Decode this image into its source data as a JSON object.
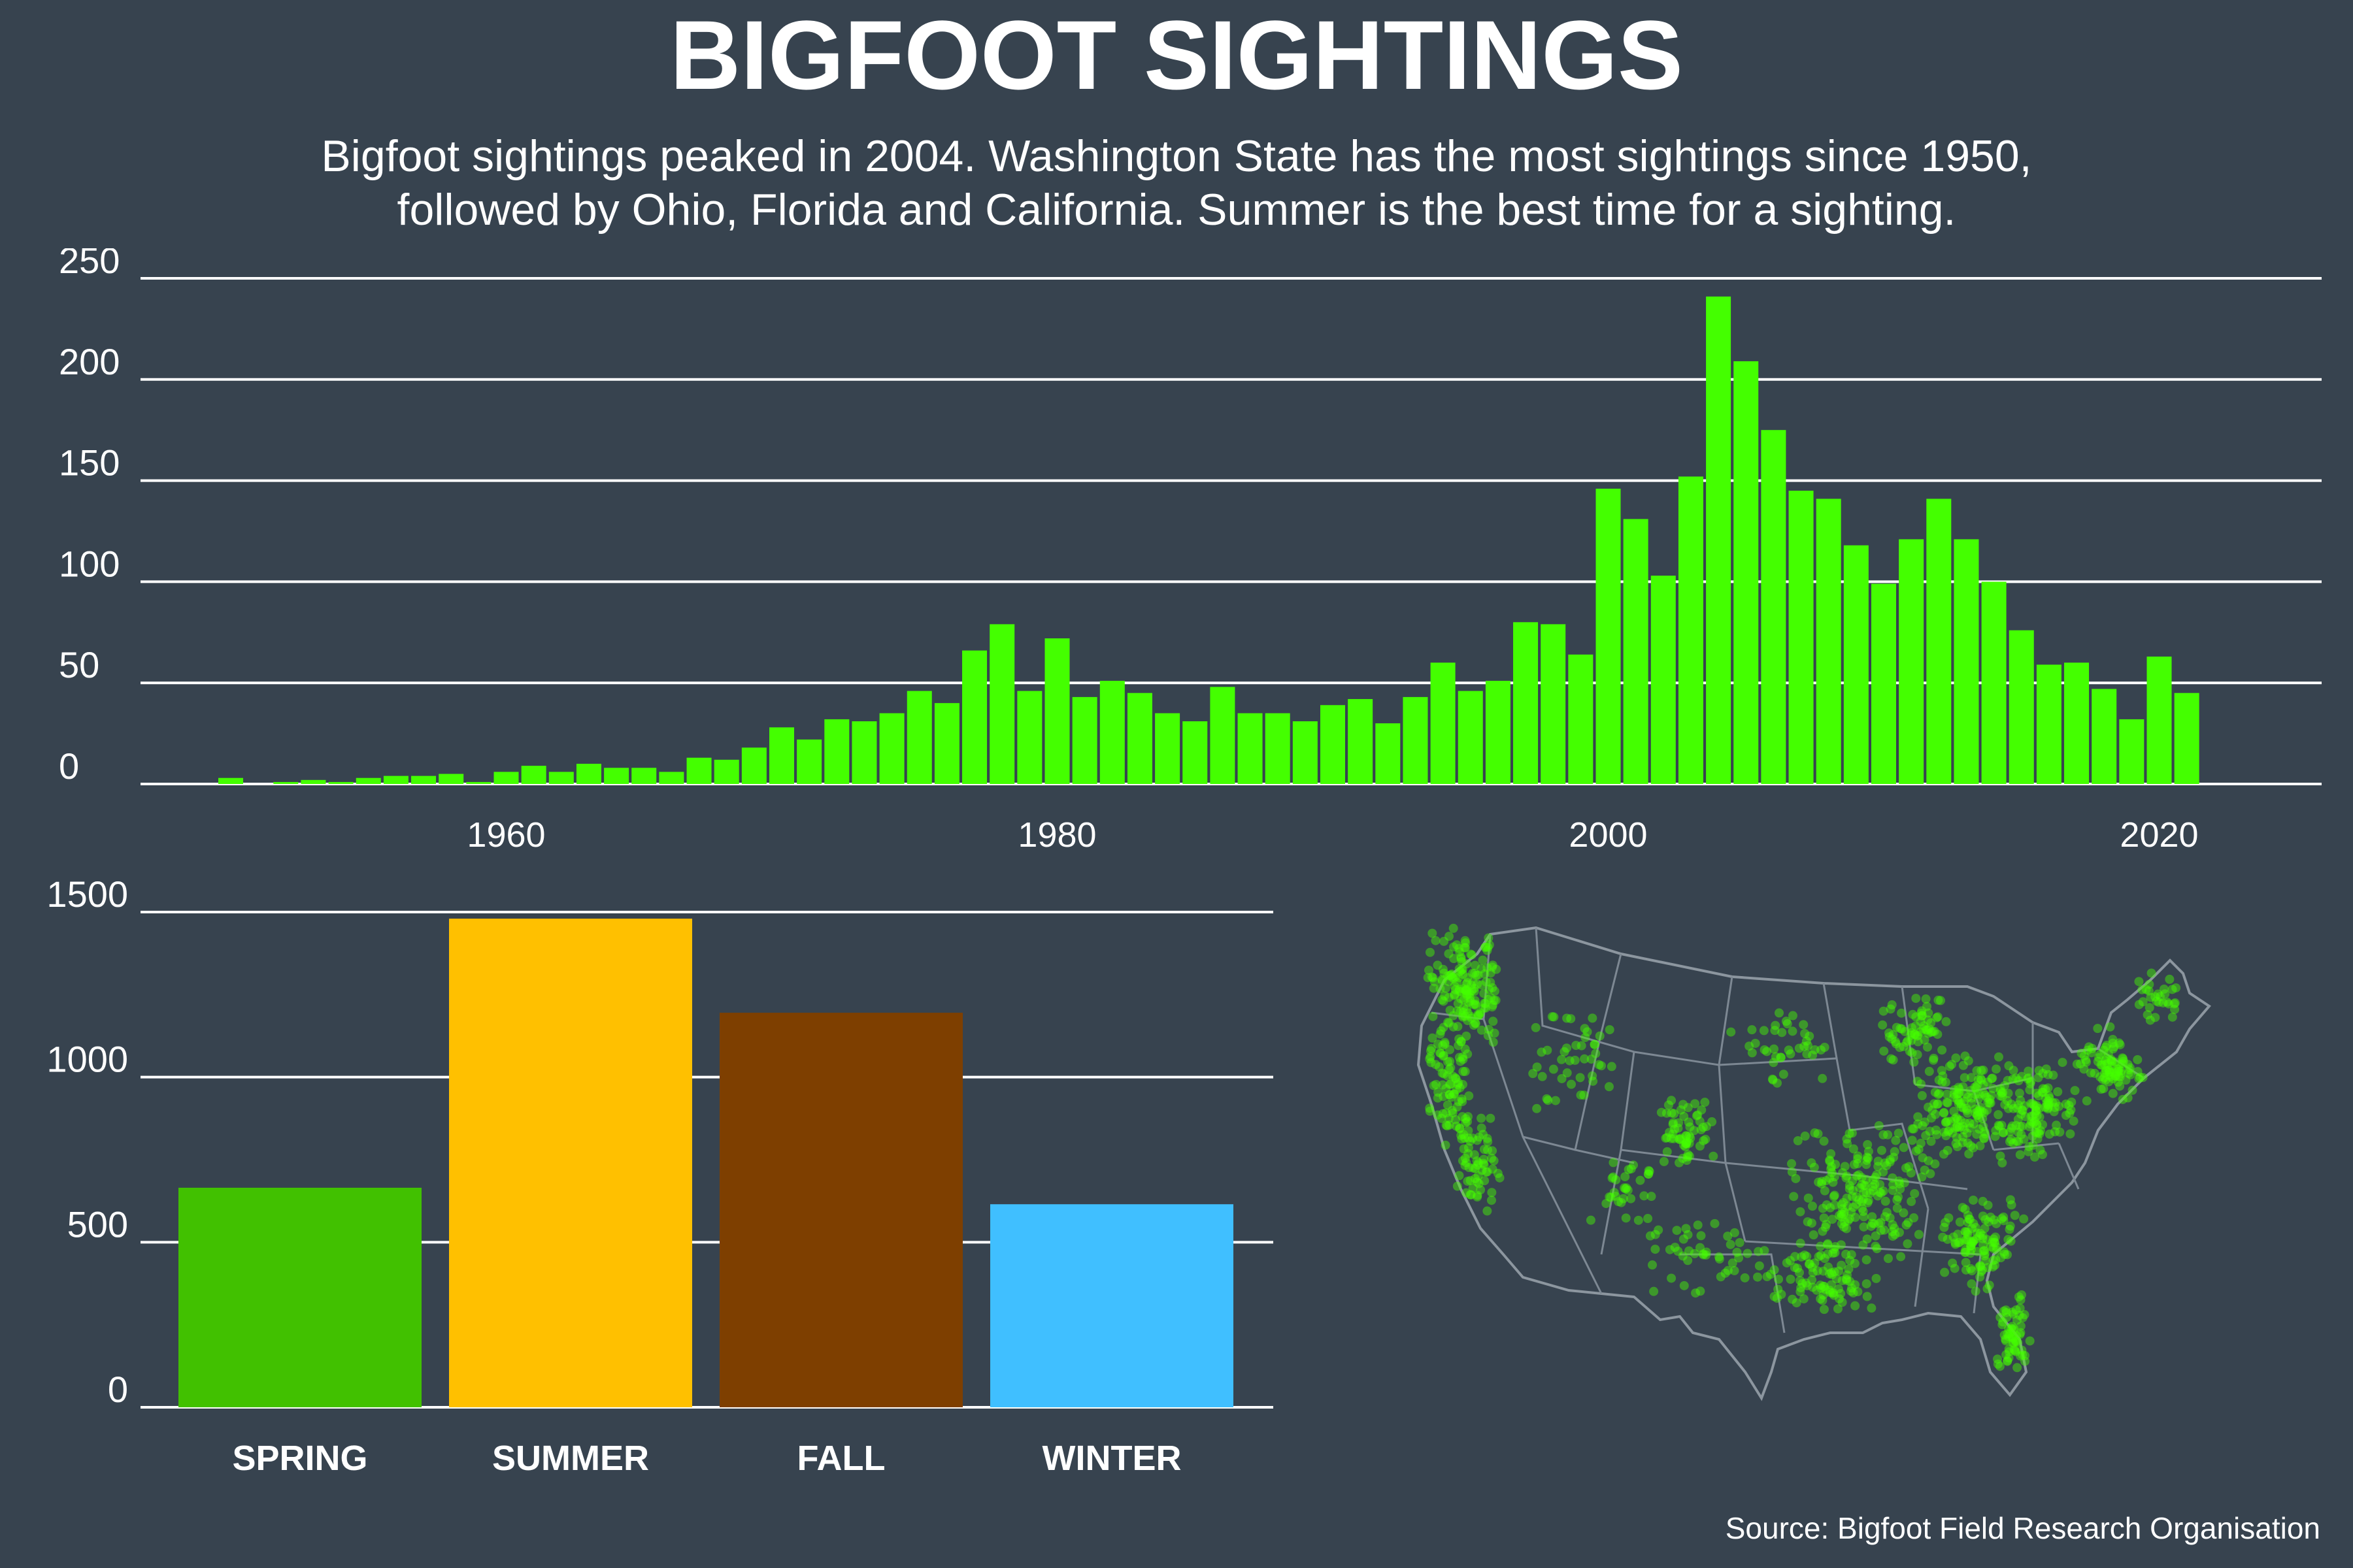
{
  "title": "BIGFOOT SIGHTINGS",
  "subtitle_line1": "Bigfoot sightings peaked in 2004. Washington State has the most sightings since 1950,",
  "subtitle_line2": "followed by Ohio, Florida and California. Summer is the best time for a sighting.",
  "source": "Source: Bigfoot Field Research Organisation",
  "colors": {
    "background": "#37434f",
    "yearly_bars": "#44ff00",
    "spring": "#41c100",
    "summer": "#ffc000",
    "fall": "#7e3f00",
    "winter": "#40bfff",
    "map_points": "#44ff00"
  },
  "chart_data": [
    {
      "type": "bar",
      "x": [
        1950,
        1951,
        1952,
        1953,
        1954,
        1955,
        1956,
        1957,
        1958,
        1959,
        1960,
        1961,
        1962,
        1963,
        1964,
        1965,
        1966,
        1967,
        1968,
        1969,
        1970,
        1971,
        1972,
        1973,
        1974,
        1975,
        1976,
        1977,
        1978,
        1979,
        1980,
        1981,
        1982,
        1983,
        1984,
        1985,
        1986,
        1987,
        1988,
        1989,
        1990,
        1991,
        1992,
        1993,
        1994,
        1995,
        1996,
        1997,
        1998,
        1999,
        2000,
        2001,
        2002,
        2003,
        2004,
        2005,
        2006,
        2007,
        2008,
        2009,
        2010,
        2011,
        2012,
        2013,
        2014,
        2015,
        2016,
        2017,
        2018,
        2019,
        2020,
        2021
      ],
      "values": [
        3,
        0,
        1,
        2,
        1,
        3,
        4,
        4,
        5,
        1,
        6,
        9,
        6,
        10,
        8,
        8,
        6,
        13,
        12,
        18,
        28,
        22,
        32,
        31,
        35,
        46,
        40,
        66,
        79,
        46,
        72,
        43,
        51,
        45,
        35,
        31,
        48,
        35,
        35,
        31,
        39,
        42,
        30,
        43,
        60,
        46,
        51,
        80,
        79,
        64,
        146,
        131,
        103,
        152,
        241,
        209,
        175,
        145,
        141,
        118,
        99,
        121,
        141,
        121,
        100,
        76,
        59,
        60,
        47,
        32,
        63,
        45
      ],
      "ylim": [
        0,
        250
      ],
      "yticks": [
        0,
        50,
        100,
        150,
        200,
        250
      ],
      "xticks": [
        1960,
        1980,
        2000,
        2020
      ],
      "grid": true
    },
    {
      "type": "bar",
      "categories": [
        "SPRING",
        "SUMMER",
        "FALL",
        "WINTER"
      ],
      "values": [
        665,
        1480,
        1195,
        615
      ],
      "ylim": [
        0,
        1500
      ],
      "yticks": [
        0,
        500,
        1000,
        1500
      ],
      "grid": true
    }
  ],
  "map": {
    "icon": "us-states-map"
  }
}
